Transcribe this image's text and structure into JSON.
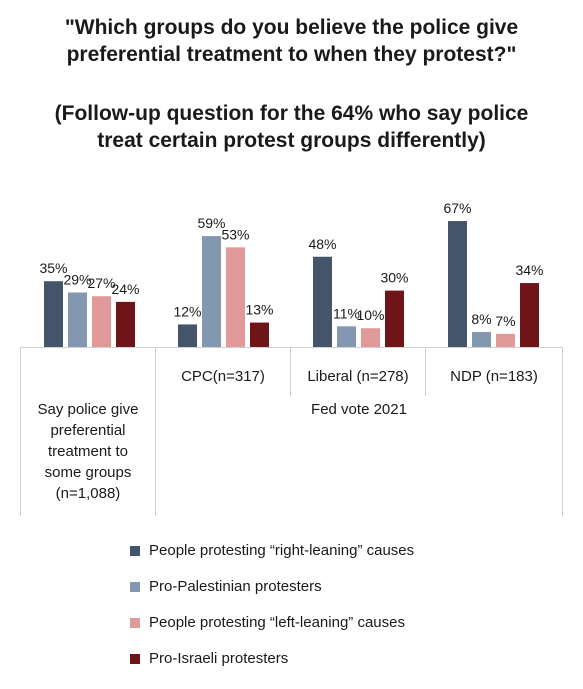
{
  "title_lines": [
    "\"Which groups do you believe the police give",
    "preferential treatment to when they protest?\""
  ],
  "subtitle_lines": [
    "(Follow-up question for the 64% who say police",
    "treat certain protest groups differently)"
  ],
  "chart_data": {
    "type": "bar",
    "title": "\"Which groups do you believe the police give preferential treatment to when they protest?\"",
    "subtitle": "(Follow-up question for the 64% who say police treat certain protest groups differently)",
    "categories": [
      "Say police give preferential treatment to some groups (n=1,088)",
      "CPC(n=317)",
      "Liberal (n=278)",
      "NDP (n=183)"
    ],
    "category_label_lines": [
      [
        "Say police give",
        "preferential",
        "treatment to",
        "some groups",
        "(n=1,088)"
      ],
      [
        "CPC(n=317)"
      ],
      [
        "Liberal (n=278)"
      ],
      [
        "NDP (n=183)"
      ]
    ],
    "group_label": "Fed vote 2021",
    "series": [
      {
        "name": "People protesting “right-leaning” causes",
        "color": "#44546a",
        "values": [
          35,
          12,
          48,
          67
        ],
        "labels": [
          "35%",
          "12%",
          "48%",
          "67%"
        ]
      },
      {
        "name": "Pro-Palestinian protesters",
        "color": "#8497b0",
        "values": [
          29,
          59,
          11,
          8
        ],
        "labels": [
          "29%",
          "59%",
          "11%",
          "8%"
        ]
      },
      {
        "name": "People protesting “left-leaning” causes",
        "color": "#e09a9a",
        "values": [
          27,
          53,
          10,
          7
        ],
        "labels": [
          "27%",
          "53%",
          "10%",
          "7%"
        ]
      },
      {
        "name": "Pro-Israeli protesters",
        "color": "#6e1519",
        "values": [
          24,
          13,
          30,
          34
        ],
        "labels": [
          "24%",
          "13%",
          "30%",
          "34%"
        ]
      }
    ],
    "ylim": [
      0,
      100
    ],
    "legend_position": "bottom",
    "grid": false
  }
}
